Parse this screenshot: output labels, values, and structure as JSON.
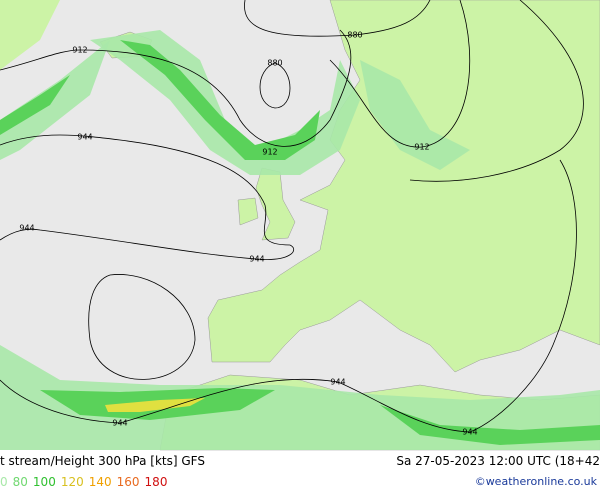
{
  "map": {
    "contour_labels": [
      "912",
      "880",
      "880",
      "912",
      "912",
      "944",
      "944",
      "944",
      "944",
      "944",
      "944"
    ]
  },
  "footer": {
    "title": "t stream/Height 300 hPa [kts] GFS",
    "datetime": "Sa 27-05-2023 12:00 UTC (18+42",
    "credit": "©weatheronline.co.uk"
  },
  "legend": {
    "items": [
      "0",
      "80",
      "100",
      "120",
      "140",
      "160",
      "180"
    ]
  }
}
